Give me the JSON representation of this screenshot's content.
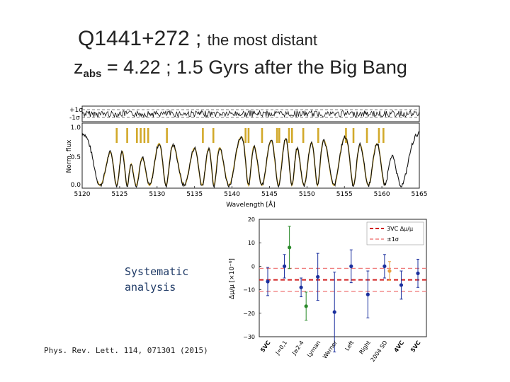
{
  "slide": {
    "title_main": "Q1441+272 ; ",
    "title_sub": "the most distant",
    "z_label": "z",
    "z_sub": "abs",
    "z_rest": " = 4.22 ; 1.5 Gyrs after the Big Bang",
    "systematic_line1": "Systematic",
    "systematic_line2": "analysis",
    "reference": "Phys. Rev. Lett. 114, 071301 (2015)"
  },
  "spectrum": {
    "ylabel": "Norm. flux",
    "xlabel": "Wavelength [Å]",
    "sigma_top": "+1σ",
    "sigma_bottom": "-1σ",
    "yticks": [
      "1.0",
      "0.5",
      "0.0"
    ],
    "xticks": [
      "5120",
      "5125",
      "5130",
      "5135",
      "5140",
      "5145",
      "5150",
      "5155",
      "5160",
      "5165"
    ],
    "xlim": [
      5120,
      5165
    ],
    "ylim": [
      0,
      1.1
    ],
    "line_color": "#111111",
    "fit_color": "#c9a227",
    "tick_mark_color": "#d2a92a"
  },
  "chart_data": {
    "type": "scatter",
    "ylabel": "Δμ/μ [×10⁻⁶]",
    "ylim": [
      -30,
      20
    ],
    "yticks": [
      "20",
      "10",
      "0",
      "−10",
      "−20",
      "−30"
    ],
    "categories": [
      "5VC",
      "J=0,1",
      "J≥2-4",
      "Lyman",
      "Werner",
      "Left",
      "Right",
      "2004 SD",
      "4VC",
      "5VC"
    ],
    "legend": [
      "3VC Δμ/μ",
      "±1σ"
    ],
    "reference_value": -5.8,
    "reference_sigma": [
      -0.9,
      -10.7
    ],
    "colors": {
      "blue": "#1a2f9e",
      "green": "#2a8a2a",
      "orange": "#e8a040",
      "red": "#d12020",
      "pink": "#f08080"
    },
    "points": [
      {
        "x": 0,
        "y": -6.5,
        "err": 6,
        "color": "blue"
      },
      {
        "x": 1,
        "y": 0,
        "err": 5,
        "color": "blue"
      },
      {
        "x": 1.3,
        "y": 8,
        "err": 9,
        "color": "green"
      },
      {
        "x": 2,
        "y": -9,
        "err": 4,
        "color": "blue"
      },
      {
        "x": 2.3,
        "y": -17,
        "err": 6,
        "color": "green"
      },
      {
        "x": 3,
        "y": -4.5,
        "err": 10,
        "color": "blue"
      },
      {
        "x": 4,
        "y": -19.5,
        "err": 17,
        "color": "blue"
      },
      {
        "x": 5,
        "y": 0,
        "err": 7,
        "color": "blue"
      },
      {
        "x": 6,
        "y": -12,
        "err": 10,
        "color": "blue"
      },
      {
        "x": 7,
        "y": 0,
        "err": 5,
        "color": "blue"
      },
      {
        "x": 7.3,
        "y": -2,
        "err": 4,
        "color": "orange"
      },
      {
        "x": 8,
        "y": -8,
        "err": 6,
        "color": "blue"
      },
      {
        "x": 9,
        "y": -3,
        "err": 6,
        "color": "blue"
      }
    ]
  }
}
